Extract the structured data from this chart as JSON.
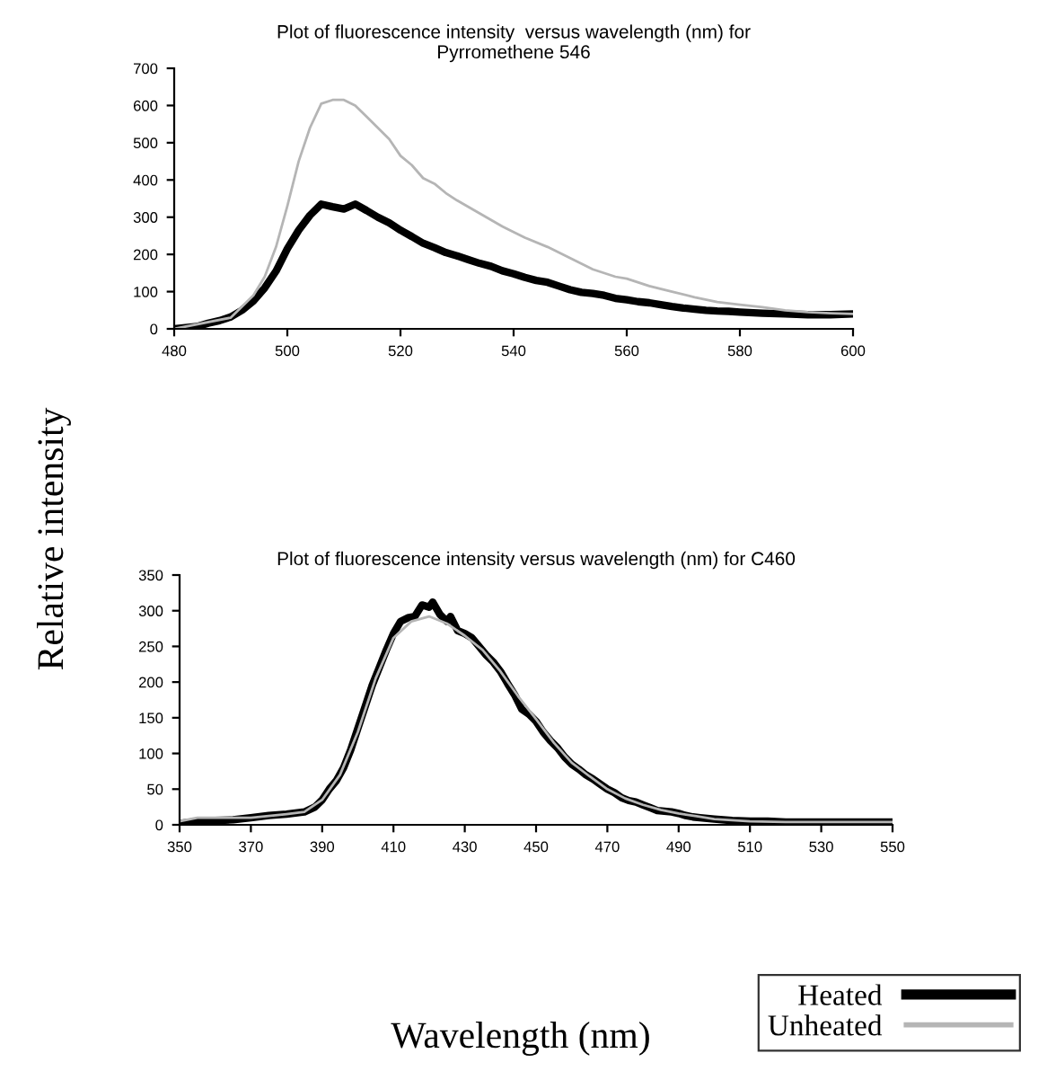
{
  "chart_data": [
    {
      "type": "line",
      "title": "Plot of fluorescence intensity  versus wavelength (nm) for\nPyrromethene 546",
      "ylabel": "Relative intensity",
      "xlim": [
        480,
        600
      ],
      "xticks": [
        480,
        500,
        520,
        540,
        560,
        580,
        600
      ],
      "ylim": [
        0,
        700
      ],
      "yticks": [
        0,
        100,
        200,
        300,
        400,
        500,
        600,
        700
      ],
      "grid": false,
      "legend": false,
      "series": [
        {
          "color": "#000000",
          "x": [
            480,
            482,
            484,
            486,
            488,
            490,
            492,
            494,
            496,
            498,
            500,
            502,
            504,
            506,
            508,
            510,
            512,
            514,
            516,
            518,
            520,
            522,
            524,
            526,
            528,
            530,
            532,
            534,
            536,
            538,
            540,
            542,
            544,
            546,
            548,
            550,
            552,
            554,
            556,
            558,
            560,
            562,
            564,
            566,
            568,
            570,
            572,
            574,
            576,
            578,
            580,
            584,
            588,
            592,
            596,
            600
          ],
          "values": [
            0,
            3,
            6,
            15,
            22,
            32,
            50,
            75,
            110,
            155,
            215,
            265,
            305,
            335,
            328,
            322,
            335,
            318,
            300,
            285,
            265,
            248,
            230,
            218,
            205,
            196,
            186,
            176,
            168,
            156,
            148,
            138,
            130,
            125,
            115,
            105,
            98,
            95,
            90,
            82,
            78,
            73,
            70,
            65,
            60,
            56,
            53,
            50,
            48,
            47,
            45,
            42,
            40,
            38,
            38,
            40
          ]
        },
        {
          "color": "#b5b5b5",
          "x": [
            480,
            490,
            494,
            496,
            498,
            500,
            502,
            504,
            506,
            508,
            510,
            512,
            514,
            516,
            518,
            520,
            522,
            524,
            526,
            528,
            530,
            534,
            538,
            542,
            546,
            550,
            554,
            558,
            560,
            564,
            568,
            572,
            576,
            580,
            584,
            588,
            592,
            596,
            600
          ],
          "values": [
            0,
            30,
            90,
            140,
            220,
            330,
            450,
            540,
            605,
            615,
            615,
            600,
            570,
            540,
            510,
            465,
            440,
            405,
            390,
            365,
            345,
            310,
            275,
            245,
            220,
            190,
            160,
            140,
            135,
            115,
            100,
            85,
            72,
            65,
            58,
            50,
            45,
            42,
            40
          ]
        }
      ]
    },
    {
      "type": "line",
      "title": "Plot of fluorescence intensity versus wavelength (nm) for C460",
      "xlabel": "Wavelength (nm)",
      "xlim": [
        350,
        550
      ],
      "xticks": [
        350,
        370,
        390,
        410,
        430,
        450,
        470,
        490,
        510,
        530,
        550
      ],
      "ylim": [
        0,
        350
      ],
      "yticks": [
        0,
        50,
        100,
        150,
        200,
        250,
        300,
        350
      ],
      "grid": false,
      "legend": "bottom right",
      "series": [
        {
          "name": "Heated",
          "color": "#000000",
          "x": [
            350,
            355,
            360,
            365,
            370,
            375,
            380,
            385,
            388,
            390,
            392,
            394,
            396,
            398,
            400,
            402,
            404,
            406,
            408,
            410,
            412,
            414,
            416,
            418,
            420,
            421,
            423,
            425,
            426,
            428,
            430,
            432,
            434,
            436,
            438,
            440,
            442,
            444,
            446,
            448,
            450,
            452,
            454,
            456,
            458,
            460,
            462,
            464,
            466,
            468,
            470,
            472,
            474,
            476,
            478,
            480,
            482,
            484,
            486,
            488,
            490,
            492,
            494,
            496,
            500,
            505,
            510,
            515,
            520,
            530,
            540,
            550
          ],
          "values": [
            2,
            5,
            6,
            7,
            10,
            13,
            15,
            18,
            25,
            35,
            50,
            62,
            80,
            105,
            135,
            165,
            195,
            220,
            245,
            268,
            285,
            290,
            292,
            308,
            305,
            312,
            295,
            285,
            292,
            272,
            268,
            262,
            250,
            238,
            228,
            215,
            198,
            182,
            162,
            155,
            145,
            130,
            118,
            108,
            95,
            85,
            78,
            70,
            64,
            57,
            50,
            45,
            38,
            34,
            32,
            28,
            24,
            20,
            19,
            18,
            16,
            13,
            11,
            10,
            8,
            6,
            5,
            5,
            4,
            4,
            4,
            4
          ]
        },
        {
          "name": "Unheated",
          "color": "#b5b5b5",
          "x": [
            350,
            355,
            360,
            370,
            380,
            385,
            390,
            395,
            400,
            405,
            410,
            415,
            420,
            425,
            430,
            435,
            440,
            445,
            450,
            455,
            460,
            465,
            470,
            475,
            480,
            485,
            490,
            495,
            500,
            510,
            520,
            530,
            550
          ],
          "values": [
            5,
            10,
            10,
            10,
            15,
            18,
            35,
            70,
            130,
            205,
            262,
            285,
            292,
            282,
            265,
            245,
            215,
            180,
            148,
            115,
            87,
            68,
            50,
            37,
            28,
            21,
            16,
            12,
            8,
            5,
            4,
            4,
            4
          ]
        }
      ]
    }
  ]
}
